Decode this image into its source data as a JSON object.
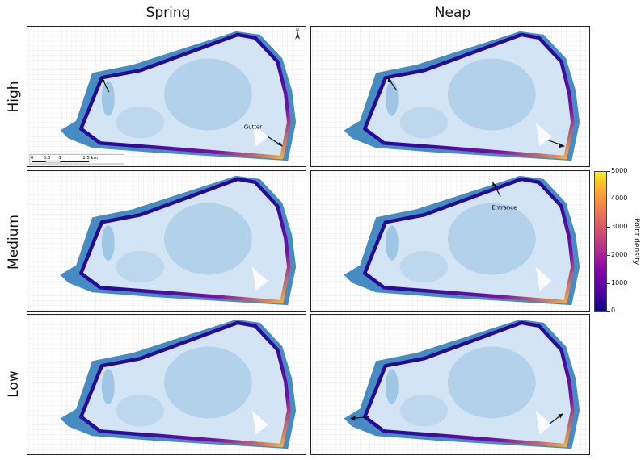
{
  "columns": [
    "Spring",
    "Neap"
  ],
  "rows": [
    "High",
    "Medium",
    "Low"
  ],
  "annotations": {
    "gutter": "Gutter",
    "entrance": "Entrance",
    "north": "N"
  },
  "scalebar": {
    "ticks": [
      "0",
      "0.5",
      "1",
      "1.5 km"
    ]
  },
  "colorbar": {
    "label": "Point density",
    "ticks": [
      "5000",
      "4000",
      "3000",
      "2000",
      "1000",
      "0"
    ],
    "palette": [
      "#0d0887",
      "#6a00a8",
      "#b12a90",
      "#e16462",
      "#fca636",
      "#f0f921"
    ]
  },
  "colors": {
    "water_outer": "#3a7fb8",
    "water_inner": "#cfe2f3",
    "grid": "#d8d8d8",
    "boundary_low": "#1a0a8c",
    "boundary_high": "#fdd835"
  }
}
